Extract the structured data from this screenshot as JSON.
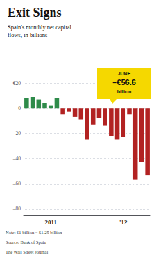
{
  "chart_data": {
    "type": "bar",
    "title": "Exit Signs",
    "subtitle": "Spain's monthly net capital\nflows, in billions",
    "categories": [
      null,
      null,
      null,
      null,
      "2011",
      null,
      null,
      null,
      null,
      null,
      null,
      null,
      null,
      null,
      null,
      null,
      "'12",
      null,
      null,
      null,
      null
    ],
    "values": [
      8,
      9,
      7,
      4,
      2,
      8,
      -5,
      -3,
      -7,
      -9,
      -25,
      -13,
      -8,
      -14,
      -22,
      -25,
      -23,
      -5,
      -56.6,
      -43,
      -53
    ],
    "colors": [
      "#2e8b4a",
      "#2e8b4a",
      "#2e8b4a",
      "#2e8b4a",
      "#2e8b4a",
      "#2e8b4a",
      "#b22222",
      "#b22222",
      "#b22222",
      "#b22222",
      "#b22222",
      "#b22222",
      "#b22222",
      "#b22222",
      "#b22222",
      "#b22222",
      "#b22222",
      "#b22222",
      "#b22222",
      "#b22222",
      "#b22222"
    ],
    "ylim": [
      -85,
      25
    ],
    "yticks": [
      {
        "value": 20,
        "label": "€20"
      },
      0,
      {
        "value": -20,
        "label": "–20"
      },
      {
        "value": -40,
        "label": "–40"
      },
      {
        "value": -60,
        "label": "–60"
      },
      {
        "value": -80,
        "label": "–80"
      }
    ],
    "grid": true,
    "annotation": {
      "title": "JUNE",
      "value": "–€56.6",
      "sub": "billion",
      "color": "#f5d800"
    },
    "notes": [
      "Note: €1 billion = $1.25 billion",
      "Source: Bank of Spain",
      "The Wall Street Journal"
    ]
  }
}
